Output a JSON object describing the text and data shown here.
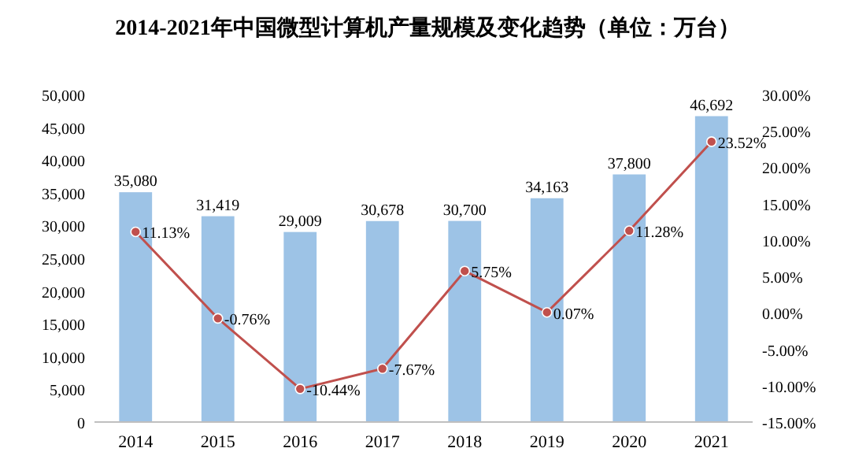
{
  "chart_data": {
    "type": "bar",
    "title": "2014-2021年中国微型计算机产量规模及变化趋势（单位：万台）",
    "categories": [
      "2014",
      "2015",
      "2016",
      "2017",
      "2018",
      "2019",
      "2020",
      "2021"
    ],
    "series": [
      {
        "color": "#9dc3e6",
        "values": [
          35080,
          31419,
          29009,
          30678,
          30700,
          34163,
          37800,
          46692
        ],
        "value_labels": [
          "35,080",
          "31,419",
          "29,009",
          "30,678",
          "30,700",
          "34,163",
          "37,800",
          "46,692"
        ]
      },
      {
        "type": "line",
        "axis": "y2",
        "color": "#c0504d",
        "marker": "circle",
        "values": [
          11.13,
          -0.76,
          -10.44,
          -7.67,
          5.75,
          0.07,
          11.28,
          23.52
        ],
        "value_labels": [
          "11.13%",
          "-0.76%",
          "-10.44%",
          "-7.67%",
          "5.75%",
          "0.07%",
          "11.28%",
          "23.52%"
        ]
      }
    ],
    "ylim": [
      0,
      50000
    ],
    "yticks": [
      0,
      {
        "value": 5000,
        "label": "5,000"
      },
      {
        "value": 10000,
        "label": "10,000"
      },
      {
        "value": 15000,
        "label": "15,000"
      },
      {
        "value": 20000,
        "label": "20,000"
      },
      {
        "value": 25000,
        "label": "25,000"
      },
      {
        "value": 30000,
        "label": "30,000"
      },
      {
        "value": 35000,
        "label": "35,000"
      },
      {
        "value": 40000,
        "label": "40,000"
      },
      {
        "value": 45000,
        "label": "45,000"
      },
      {
        "value": 50000,
        "label": "50,000"
      }
    ],
    "y2lim": [
      -15,
      30
    ],
    "y2ticks": [
      {
        "value": -15,
        "label": "-15.00%"
      },
      {
        "value": -10,
        "label": "-10.00%"
      },
      {
        "value": -5,
        "label": "-5.00%"
      },
      {
        "value": 0,
        "label": "0.00%"
      },
      {
        "value": 5,
        "label": "5.00%"
      },
      {
        "value": 10,
        "label": "10.00%"
      },
      {
        "value": 15,
        "label": "15.00%"
      },
      {
        "value": 20,
        "label": "20.00%"
      },
      {
        "value": 25,
        "label": "25.00%"
      },
      {
        "value": 30,
        "label": "30.00%"
      }
    ]
  }
}
